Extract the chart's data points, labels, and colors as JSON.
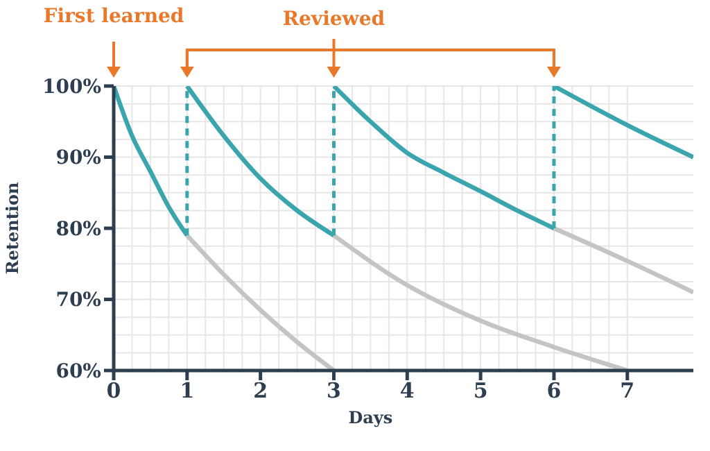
{
  "chart_data": {
    "type": "line",
    "xlabel": "Days",
    "ylabel": "Retention",
    "xlim": [
      0,
      7.9
    ],
    "xticks": [
      0,
      1,
      2,
      3,
      4,
      5,
      6,
      7
    ],
    "ylim": [
      60,
      100
    ],
    "yticks": [
      {
        "value": 60,
        "label": "60%"
      },
      {
        "value": 70,
        "label": "70%"
      },
      {
        "value": 80,
        "label": "80%"
      },
      {
        "value": 90,
        "label": "90%"
      },
      {
        "value": 100,
        "label": "100%"
      }
    ],
    "grid": true,
    "marker": "none",
    "annotations": [
      {
        "text": "First learned",
        "x": 0,
        "y": 100
      },
      "Reviewed"
    ],
    "series": [
      {
        "color": "#c4c4c4",
        "x": [
          1,
          1.5,
          2,
          2.5,
          3
        ],
        "values": [
          79,
          73.5,
          68.5,
          64,
          60
        ]
      },
      {
        "color": "#c4c4c4",
        "x": [
          3,
          4,
          5,
          6,
          7
        ],
        "values": [
          79,
          72,
          67,
          63.3,
          60
        ]
      },
      {
        "color": "#c4c4c4",
        "x": [
          6,
          7,
          7.9
        ],
        "values": [
          80,
          75.4,
          71
        ]
      },
      {
        "color": "#3aa5ad",
        "x": [
          0,
          0.25,
          0.5,
          0.75,
          1
        ],
        "values": [
          100,
          93,
          88,
          83,
          79
        ]
      },
      {
        "color": "#3aa5ad",
        "x": [
          1,
          1.5,
          2,
          2.5,
          3
        ],
        "values": [
          100,
          93,
          87,
          82.5,
          79
        ]
      },
      {
        "color": "#3aa5ad",
        "x": [
          3,
          3.5,
          4,
          4.5,
          5,
          5.5,
          6
        ],
        "values": [
          100,
          95,
          90.6,
          87.8,
          85.2,
          82.5,
          80
        ]
      },
      {
        "color": "#3aa5ad",
        "x": [
          6,
          7,
          7.9
        ],
        "values": [
          100,
          94.5,
          90
        ]
      },
      {
        "color": "#3aa5ad",
        "line_style": "dashed",
        "x": [
          1,
          1
        ],
        "values": [
          79,
          100
        ]
      },
      {
        "color": "#3aa5ad",
        "line_style": "dashed",
        "x": [
          3,
          3
        ],
        "values": [
          79,
          100
        ]
      },
      {
        "color": "#3aa5ad",
        "line_style": "dashed",
        "x": [
          6,
          6
        ],
        "values": [
          80,
          100
        ]
      }
    ]
  }
}
